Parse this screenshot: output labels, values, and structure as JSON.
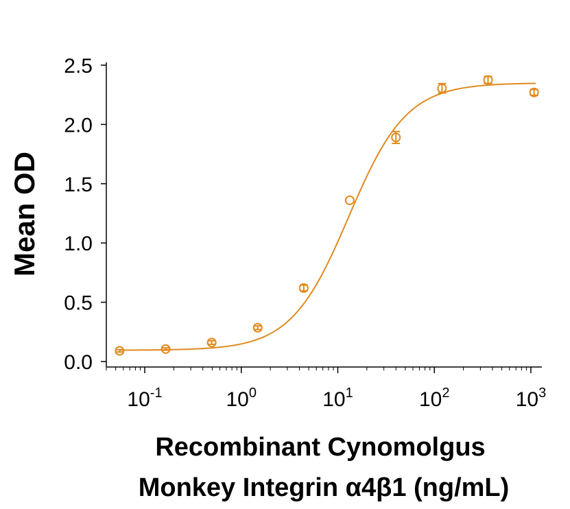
{
  "chart_data": {
    "type": "scatter",
    "x_scale": "log",
    "color": "#E08A1E",
    "ylabel": "Mean OD",
    "xlabel_line1": "Recombinant Cynomolgus",
    "xlabel_line2": "Monkey Integrin α4β1 (ng/mL)",
    "ylim": [
      0,
      2.5
    ],
    "xlim": [
      0.04,
      1300
    ],
    "y_ticks": [
      {
        "value": 0.0,
        "label": "0.0"
      },
      {
        "value": 0.5,
        "label": "0.5"
      },
      {
        "value": 1.0,
        "label": "1.0"
      },
      {
        "value": 1.5,
        "label": "1.5"
      },
      {
        "value": 2.0,
        "label": "2.0"
      },
      {
        "value": 2.5,
        "label": "2.5"
      }
    ],
    "x_ticks": [
      {
        "value": 0.1,
        "base": "10",
        "exp": "-1"
      },
      {
        "value": 1,
        "base": "10",
        "exp": "0"
      },
      {
        "value": 10,
        "base": "10",
        "exp": "1"
      },
      {
        "value": 100,
        "base": "10",
        "exp": "2"
      },
      {
        "value": 1000,
        "base": "10",
        "exp": "3"
      }
    ],
    "series": [
      {
        "name": "Mean OD",
        "points": [
          {
            "x": 0.0549,
            "y": 0.09,
            "err": 0.01
          },
          {
            "x": 0.165,
            "y": 0.105,
            "err": 0.01
          },
          {
            "x": 0.494,
            "y": 0.16,
            "err": 0.015
          },
          {
            "x": 1.48,
            "y": 0.285,
            "err": 0.015
          },
          {
            "x": 4.44,
            "y": 0.62,
            "err": 0.025
          },
          {
            "x": 13.3,
            "y": 1.36,
            "err": 0.0
          },
          {
            "x": 40.0,
            "y": 1.89,
            "err": 0.05
          },
          {
            "x": 120,
            "y": 2.305,
            "err": 0.04
          },
          {
            "x": 360,
            "y": 2.375,
            "err": 0.03
          },
          {
            "x": 1080,
            "y": 2.27,
            "err": 0.025
          }
        ],
        "fit": {
          "model": "4PL",
          "bottom": 0.095,
          "top": 2.35,
          "ec50": 13.0,
          "hill": 1.45
        }
      }
    ]
  }
}
